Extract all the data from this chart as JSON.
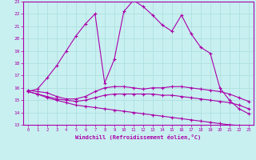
{
  "xlabel": "Windchill (Refroidissement éolien,°C)",
  "background_color": "#c8f0f0",
  "line_color": "#aa00aa",
  "grid_color": "#aadddd",
  "xlim": [
    -0.5,
    23.5
  ],
  "ylim": [
    13,
    23
  ],
  "xticks": [
    0,
    1,
    2,
    3,
    4,
    5,
    6,
    7,
    8,
    9,
    10,
    11,
    12,
    13,
    14,
    15,
    16,
    17,
    18,
    19,
    20,
    21,
    22,
    23
  ],
  "yticks": [
    13,
    14,
    15,
    16,
    17,
    18,
    19,
    20,
    21,
    22,
    23
  ],
  "lines": [
    {
      "x": [
        0,
        1,
        2,
        3,
        4,
        5,
        6,
        7,
        8,
        9,
        10,
        11,
        12,
        13,
        14,
        15,
        16,
        17,
        18,
        19,
        20,
        21,
        22,
        23
      ],
      "y": [
        15.7,
        15.9,
        16.8,
        17.8,
        19.0,
        20.2,
        21.2,
        22.0,
        16.4,
        18.3,
        22.2,
        23.1,
        22.6,
        21.9,
        21.1,
        20.6,
        21.9,
        20.4,
        19.3,
        18.8,
        16.0,
        15.0,
        14.3,
        13.9
      ]
    },
    {
      "x": [
        0,
        1,
        2,
        3,
        4,
        5,
        6,
        7,
        8,
        9,
        10,
        11,
        12,
        13,
        14,
        15,
        16,
        17,
        18,
        19,
        20,
        21,
        22,
        23
      ],
      "y": [
        15.8,
        15.7,
        15.6,
        15.3,
        15.1,
        15.1,
        15.3,
        15.7,
        16.0,
        16.1,
        16.1,
        16.0,
        15.9,
        16.0,
        16.0,
        16.1,
        16.1,
        16.0,
        15.9,
        15.8,
        15.7,
        15.5,
        15.2,
        14.9
      ]
    },
    {
      "x": [
        0,
        1,
        2,
        3,
        4,
        5,
        6,
        7,
        8,
        9,
        10,
        11,
        12,
        13,
        14,
        15,
        16,
        17,
        18,
        19,
        20,
        21,
        22,
        23
      ],
      "y": [
        15.7,
        15.5,
        15.3,
        15.1,
        15.0,
        14.9,
        15.0,
        15.2,
        15.4,
        15.5,
        15.5,
        15.5,
        15.5,
        15.5,
        15.4,
        15.4,
        15.3,
        15.2,
        15.1,
        15.0,
        14.9,
        14.8,
        14.6,
        14.3
      ]
    },
    {
      "x": [
        0,
        1,
        2,
        3,
        4,
        5,
        6,
        7,
        8,
        9,
        10,
        11,
        12,
        13,
        14,
        15,
        16,
        17,
        18,
        19,
        20,
        21,
        22,
        23
      ],
      "y": [
        15.7,
        15.5,
        15.2,
        15.0,
        14.8,
        14.6,
        14.5,
        14.4,
        14.3,
        14.2,
        14.1,
        14.0,
        13.9,
        13.8,
        13.7,
        13.6,
        13.5,
        13.4,
        13.3,
        13.2,
        13.1,
        13.0,
        12.95,
        12.85
      ]
    }
  ]
}
